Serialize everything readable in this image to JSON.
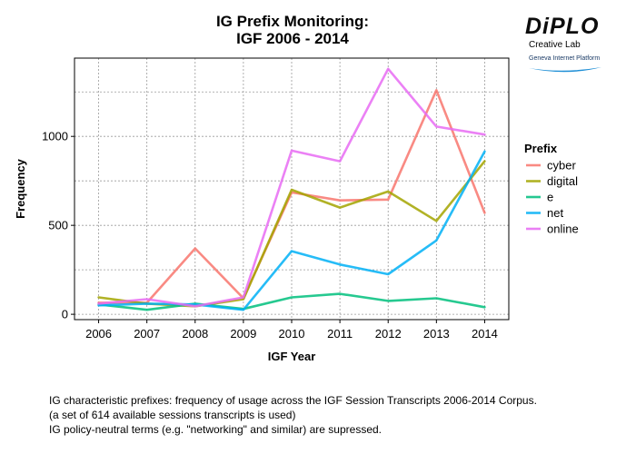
{
  "logo": {
    "brand": "DiPLO",
    "sub1": "Creative Lab",
    "sub2": "Geneva Internet Platform"
  },
  "caption": [
    "IG characteristic prefixes: frequency of usage across the IGF Session Transcripts 2006-2014 Corpus.",
    "(a set of 614 available sessions transcripts is used)",
    "IG policy-neutral terms (e.g. \"networking\" and similar) are supressed."
  ],
  "chart_data": {
    "type": "line",
    "title": [
      "IG Prefix Monitoring:",
      "IGF 2006 - 2014"
    ],
    "xlabel": "IGF Year",
    "ylabel": "Frequency",
    "x": [
      2006,
      2007,
      2008,
      2009,
      2010,
      2011,
      2012,
      2013,
      2014
    ],
    "ylim": [
      -30,
      1440
    ],
    "yticks": [
      0,
      500,
      1000
    ],
    "grid": true,
    "legend": {
      "title": "Prefix",
      "placement": "right"
    },
    "series": [
      {
        "name": "cyber",
        "color": "#f8766d",
        "values": [
          65,
          65,
          370,
          90,
          685,
          640,
          645,
          1260,
          570
        ]
      },
      {
        "name": "digital",
        "color": "#a3a500",
        "values": [
          95,
          60,
          45,
          85,
          700,
          600,
          690,
          525,
          860
        ]
      },
      {
        "name": "e",
        "color": "#00bf7d",
        "values": [
          55,
          25,
          60,
          30,
          95,
          115,
          75,
          90,
          40
        ]
      },
      {
        "name": "net",
        "color": "#00b0f6",
        "values": [
          50,
          60,
          55,
          25,
          355,
          280,
          225,
          415,
          915
        ]
      },
      {
        "name": "online",
        "color": "#e76bf3",
        "values": [
          60,
          85,
          45,
          95,
          920,
          860,
          1380,
          1055,
          1010
        ]
      }
    ]
  }
}
